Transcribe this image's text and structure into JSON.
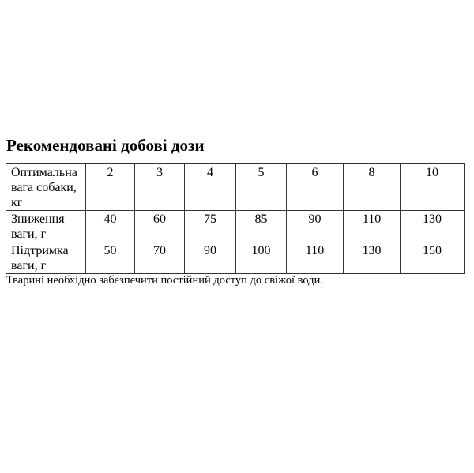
{
  "title": "Рекомендовані добові дози",
  "table": {
    "rows": [
      {
        "label": "Оптимальна вага собаки, кг",
        "values": [
          "2",
          "3",
          "4",
          "5",
          "6",
          "8",
          "10"
        ]
      },
      {
        "label": "Зниження ваги, г",
        "values": [
          "40",
          "60",
          "75",
          "85",
          "90",
          "110",
          "130"
        ]
      },
      {
        "label": "Підтримка ваги, г",
        "values": [
          "50",
          "70",
          "90",
          "100",
          "110",
          "130",
          "150"
        ]
      }
    ]
  },
  "note": "Тварині необхідно забезпечити постійний доступ до свіжої води."
}
